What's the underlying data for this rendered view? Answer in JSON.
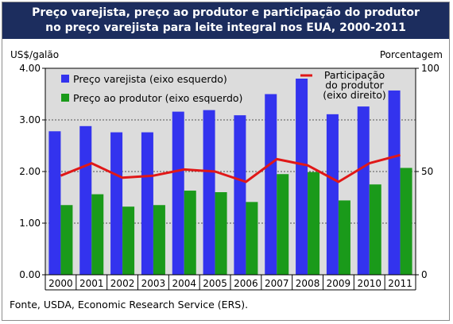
{
  "title_line1": "Preço varejista, preço ao produtor e participação do produtor",
  "title_line2": "no preço varejista para leite integral nos EUA, 2000-2011",
  "source": "Fonte, USDA, Economic Research Service (ERS).",
  "colors": {
    "title_bg": "#1c2d5e",
    "retail": "#3333ee",
    "producer": "#1a9a1a",
    "share": "#e01818",
    "plot_bg": "#dcdcdc"
  },
  "chart_data": {
    "type": "bar",
    "categories": [
      "2000",
      "2001",
      "2002",
      "2003",
      "2004",
      "2005",
      "2006",
      "2007",
      "2008",
      "2009",
      "2010",
      "2011"
    ],
    "series": [
      {
        "name": "Preço varejista (eixo esquerdo)",
        "axis": "left",
        "type": "bar",
        "values": [
          2.78,
          2.88,
          2.76,
          2.76,
          3.16,
          3.19,
          3.09,
          3.5,
          3.8,
          3.11,
          3.26,
          3.57
        ]
      },
      {
        "name": "Preço ao produtor (eixo esquerdo)",
        "axis": "left",
        "type": "bar",
        "values": [
          1.35,
          1.56,
          1.32,
          1.35,
          1.63,
          1.6,
          1.41,
          1.95,
          1.99,
          1.44,
          1.75,
          2.07
        ]
      },
      {
        "name": "Participação do produtor (eixo direito)",
        "axis": "right",
        "type": "line",
        "values": [
          48,
          54,
          47,
          48,
          51,
          50,
          45,
          56,
          53,
          45,
          54,
          58
        ]
      }
    ],
    "legend_lines_share": [
      "Participação",
      "do produtor",
      "(eixo direito)"
    ],
    "ylabel_left": "US$/galão",
    "ylabel_right": "Porcentagem",
    "ylim_left": [
      0,
      4
    ],
    "ylim_right": [
      0,
      100
    ],
    "yticks_left": [
      "0.00",
      "1.00",
      "2.00",
      "3.00",
      "4.00"
    ],
    "yticks_right": [
      "0",
      "50",
      "100"
    ],
    "grid": true,
    "legend_position": "top"
  }
}
